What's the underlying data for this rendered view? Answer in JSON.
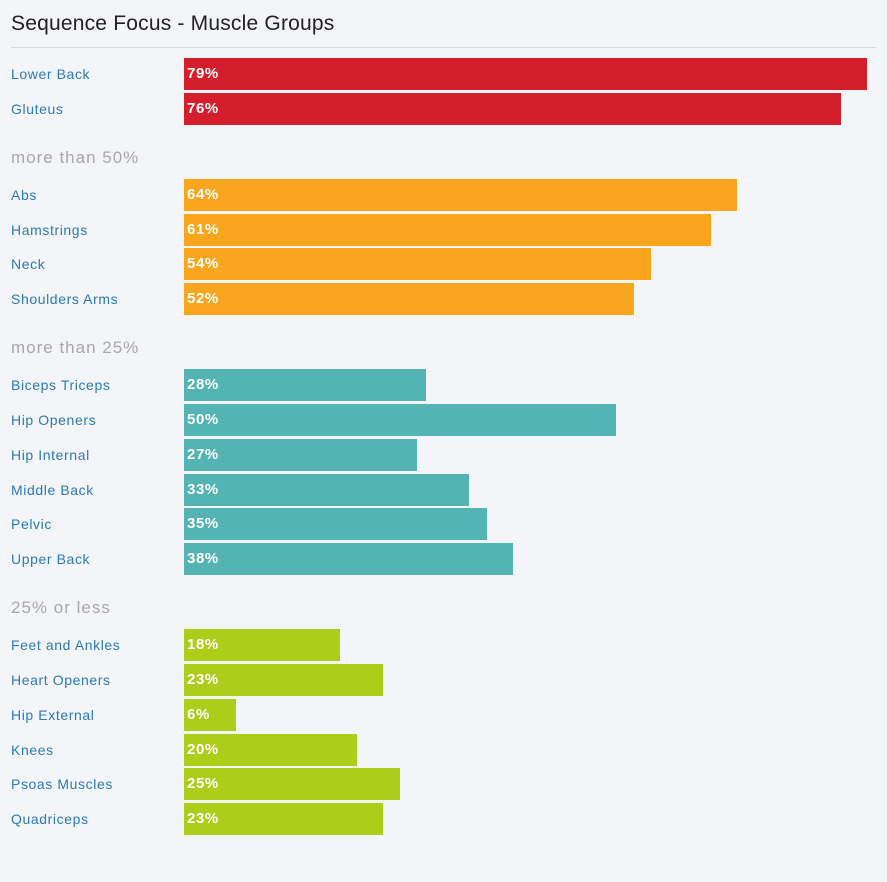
{
  "title": "Sequence Focus - Muscle Groups",
  "chart_data": {
    "type": "bar",
    "orientation": "horizontal",
    "title": "Sequence Focus - Muscle Groups",
    "xlim": [
      0,
      79
    ],
    "groups": [
      {
        "heading": "",
        "color": "#d41e2c",
        "items": [
          {
            "label": "Lower Back",
            "value": 79,
            "display": "79%"
          },
          {
            "label": "Gluteus",
            "value": 76,
            "display": "76%"
          }
        ]
      },
      {
        "heading": "more than 50%",
        "color": "#f9a61e",
        "items": [
          {
            "label": "Abs",
            "value": 64,
            "display": "64%"
          },
          {
            "label": "Hamstrings",
            "value": 61,
            "display": "61%"
          },
          {
            "label": "Neck",
            "value": 54,
            "display": "54%"
          },
          {
            "label": "Shoulders Arms",
            "value": 52,
            "display": "52%"
          }
        ]
      },
      {
        "heading": "more than 25%",
        "color": "#54b4b4",
        "items": [
          {
            "label": "Biceps Triceps",
            "value": 28,
            "display": "28%"
          },
          {
            "label": "Hip Openers",
            "value": 50,
            "display": "50%"
          },
          {
            "label": "Hip Internal",
            "value": 27,
            "display": "27%"
          },
          {
            "label": "Middle Back",
            "value": 33,
            "display": "33%"
          },
          {
            "label": "Pelvic",
            "value": 35,
            "display": "35%"
          },
          {
            "label": "Upper Back",
            "value": 38,
            "display": "38%"
          }
        ]
      },
      {
        "heading": "25% or less",
        "color": "#aecd1a",
        "items": [
          {
            "label": "Feet and Ankles",
            "value": 18,
            "display": "18%"
          },
          {
            "label": "Heart Openers",
            "value": 23,
            "display": "23%"
          },
          {
            "label": "Hip External",
            "value": 6,
            "display": "6%"
          },
          {
            "label": "Knees",
            "value": 20,
            "display": "20%"
          },
          {
            "label": "Psoas Muscles",
            "value": 25,
            "display": "25%"
          },
          {
            "label": "Quadriceps",
            "value": 23,
            "display": "23%"
          }
        ]
      }
    ]
  }
}
